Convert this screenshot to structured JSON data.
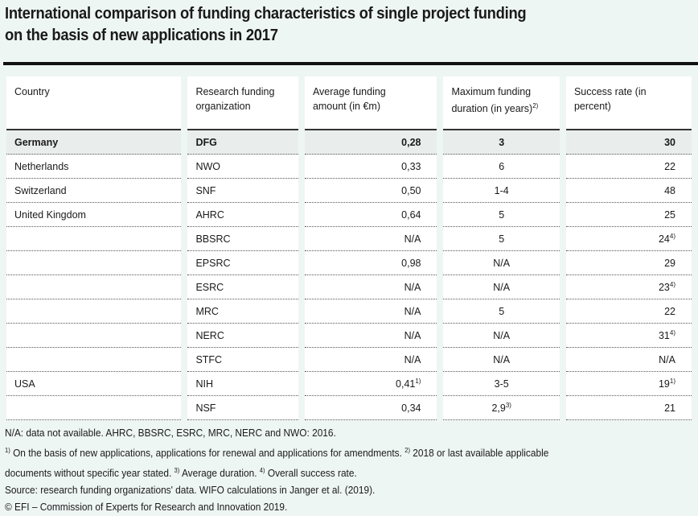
{
  "title": [
    "International comparison of funding characteristics of single project funding",
    "on the basis of new applications in 2017"
  ],
  "headers": {
    "country": "Country",
    "org": "Research funding organization",
    "avg": "Average funding amount (in €m)",
    "max": "Maximum funding duration (in years)",
    "max_sup": "2)",
    "rate": "Success rate (in percent)"
  },
  "rows": [
    {
      "country": "Germany",
      "org": "DFG",
      "avg": "0,28",
      "avg_sup": "",
      "max": "3",
      "max_sup": "",
      "rate": "30",
      "rate_sup": ""
    },
    {
      "country": "Netherlands",
      "org": "NWO",
      "avg": "0,33",
      "avg_sup": "",
      "max": "6",
      "max_sup": "",
      "rate": "22",
      "rate_sup": ""
    },
    {
      "country": "Switzerland",
      "org": "SNF",
      "avg": "0,50",
      "avg_sup": "",
      "max": "1-4",
      "max_sup": "",
      "rate": "48",
      "rate_sup": ""
    },
    {
      "country": "United Kingdom",
      "org": "AHRC",
      "avg": "0,64",
      "avg_sup": "",
      "max": "5",
      "max_sup": "",
      "rate": "25",
      "rate_sup": ""
    },
    {
      "country": "",
      "org": "BBSRC",
      "avg": "N/A",
      "avg_sup": "",
      "max": "5",
      "max_sup": "",
      "rate": "24",
      "rate_sup": "4)"
    },
    {
      "country": "",
      "org": "EPSRC",
      "avg": "0,98",
      "avg_sup": "",
      "max": "N/A",
      "max_sup": "",
      "rate": "29",
      "rate_sup": ""
    },
    {
      "country": "",
      "org": "ESRC",
      "avg": "N/A",
      "avg_sup": "",
      "max": "N/A",
      "max_sup": "",
      "rate": "23",
      "rate_sup": "4)"
    },
    {
      "country": "",
      "org": "MRC",
      "avg": "N/A",
      "avg_sup": "",
      "max": "5",
      "max_sup": "",
      "rate": "22",
      "rate_sup": ""
    },
    {
      "country": "",
      "org": "NERC",
      "avg": "N/A",
      "avg_sup": "",
      "max": "N/A",
      "max_sup": "",
      "rate": "31",
      "rate_sup": "4)"
    },
    {
      "country": "",
      "org": "STFC",
      "avg": "N/A",
      "avg_sup": "",
      "max": "N/A",
      "max_sup": "",
      "rate": "N/A",
      "rate_sup": ""
    },
    {
      "country": "USA",
      "org": "NIH",
      "avg": "0,41",
      "avg_sup": "1)",
      "max": "3-5",
      "max_sup": "",
      "rate": "19",
      "rate_sup": "1)"
    },
    {
      "country": "",
      "org": "NSF",
      "avg": "0,34",
      "avg_sup": "",
      "max": "2,9",
      "max_sup": "3)",
      "rate": "21",
      "rate_sup": ""
    }
  ],
  "notes": {
    "na": "N/A: data not available. AHRC, BBSRC, ESRC, MRC, NERC and NWO: 2016.",
    "fn1_sup": "1)",
    "fn1": " On the basis of new applications, applications for renewal and applications for amendments. ",
    "fn2_sup": "2)",
    "fn2": " 2018 or last available applicable",
    "fn2b": "documents without specific year stated. ",
    "fn3_sup": "3)",
    "fn3": " Average duration. ",
    "fn4_sup": "4)",
    "fn4": " Overall success rate.",
    "source": "Source: research funding organizations' data. WIFO calculations in Janger et al. (2019).",
    "copyright": "© EFI – Commission of Experts for Research and Innovation 2019."
  }
}
